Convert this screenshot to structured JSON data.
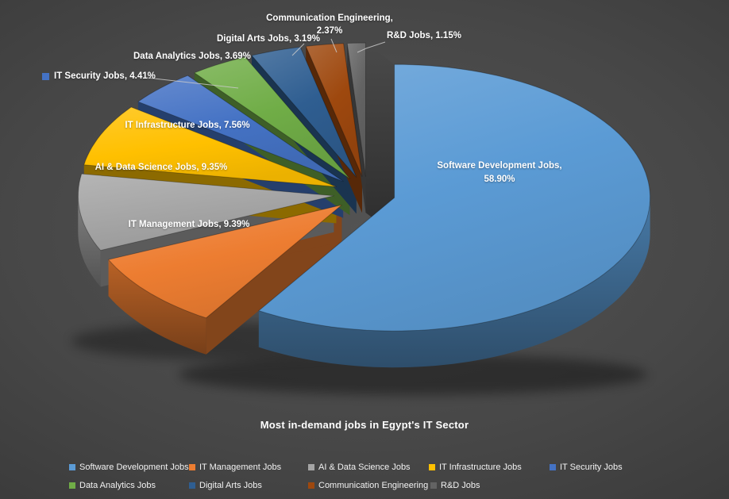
{
  "title": "Most in-demand jobs in Egypt's IT Sector",
  "background": {
    "center": "#535353",
    "edge": "#272727",
    "leader_line_color": "#c9c9c9"
  },
  "chart_data": {
    "type": "pie",
    "style": "3d-exploded",
    "title": "Most in-demand jobs in Egypt's IT Sector",
    "unit": "%",
    "legend_position": "bottom",
    "slices": [
      {
        "label": "Software Development Jobs",
        "value": 58.9,
        "color": "#5B9BD5"
      },
      {
        "label": "IT Management Jobs",
        "value": 9.39,
        "color": "#ED7D31"
      },
      {
        "label": "AI & Data Science Jobs",
        "value": 9.35,
        "color": "#A5A5A5"
      },
      {
        "label": "IT Infrastructure Jobs",
        "value": 7.56,
        "color": "#FFC000"
      },
      {
        "label": "IT Security Jobs",
        "value": 4.41,
        "color": "#4472C4"
      },
      {
        "label": "Data Analytics Jobs",
        "value": 3.69,
        "color": "#70AD47"
      },
      {
        "label": "Digital Arts Jobs",
        "value": 3.19,
        "color": "#2F5E91"
      },
      {
        "label": "Communication Engineering",
        "value": 2.37,
        "color": "#9E480E"
      },
      {
        "label": "R&D Jobs",
        "value": 1.15,
        "color": "#636363"
      }
    ],
    "data_labels": {
      "softdev_line1": "Software Development Jobs,",
      "softdev_line2": "58.90%",
      "itmgmt": "IT Management Jobs, 9.39%",
      "aids": "AI & Data Science Jobs, 9.35%",
      "itinfra": "IT Infrastructure Jobs, 7.56%",
      "itsec": "IT Security Jobs, 4.41%",
      "dataana": "Data Analytics Jobs, 3.69%",
      "digital": "Digital Arts Jobs, 3.19%",
      "commeng_line1": "Communication Engineering,",
      "commeng_line2": "2.37%",
      "rnd": "R&D Jobs, 1.15%"
    }
  }
}
